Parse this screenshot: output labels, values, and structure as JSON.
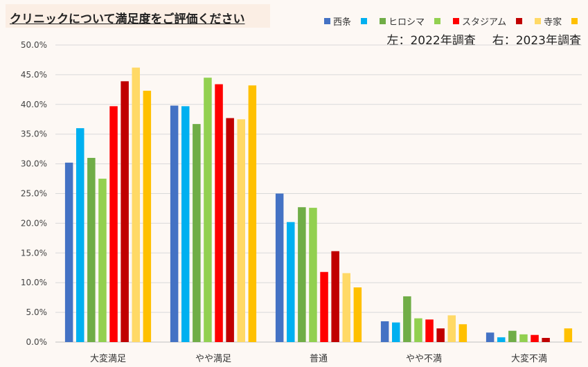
{
  "header": {
    "title": "クリニックについて満足度をご評価ください",
    "note_left": "左：2022年調査",
    "note_right": "右：2023年調査"
  },
  "chart_data": {
    "type": "bar",
    "title": "クリニックについて満足度をご評価ください",
    "categories": [
      "大変満足",
      "やや満足",
      "普通",
      "やや不満",
      "大変不満"
    ],
    "series": [
      {
        "name": "西条 2022",
        "legend": "西条",
        "color": "#4472c4",
        "values": [
          30.2,
          39.8,
          25.0,
          3.5,
          1.6
        ]
      },
      {
        "name": "西条 2023",
        "legend": "",
        "color": "#00b0f0",
        "values": [
          36.0,
          39.7,
          20.2,
          3.3,
          0.8
        ]
      },
      {
        "name": "ヒロシマ 2022",
        "legend": "ヒロシマ",
        "color": "#70ad47",
        "values": [
          31.0,
          36.7,
          22.7,
          7.7,
          1.9
        ]
      },
      {
        "name": "ヒロシマ 2023",
        "legend": "",
        "color": "#92d050",
        "values": [
          27.5,
          44.5,
          22.6,
          4.0,
          1.3
        ]
      },
      {
        "name": "スタジアム 2022",
        "legend": "スタジアム",
        "color": "#ff0000",
        "values": [
          39.7,
          43.4,
          11.8,
          3.8,
          1.2
        ]
      },
      {
        "name": "スタジアム 2023",
        "legend": "",
        "color": "#c00000",
        "values": [
          43.9,
          37.7,
          15.3,
          2.3,
          0.7
        ]
      },
      {
        "name": "寺家 2022",
        "legend": "寺家",
        "color": "#ffd966",
        "values": [
          46.2,
          37.5,
          11.6,
          4.5,
          0.0
        ]
      },
      {
        "name": "寺家 2023",
        "legend": "",
        "color": "#ffc000",
        "values": [
          42.3,
          43.2,
          9.2,
          3.0,
          2.3
        ]
      }
    ],
    "yticks": [
      "0.0%",
      "5.0%",
      "10.0%",
      "15.0%",
      "20.0%",
      "25.0%",
      "30.0%",
      "35.0%",
      "40.0%",
      "45.0%",
      "50.0%"
    ],
    "ylim": [
      0,
      50
    ],
    "grid": true,
    "legend_position": "top-right"
  }
}
